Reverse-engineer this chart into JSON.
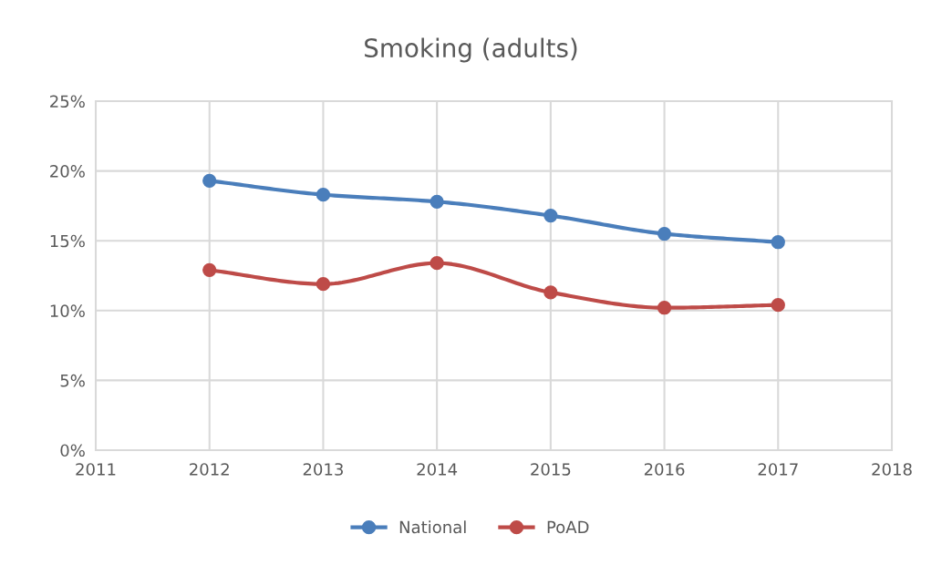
{
  "chart_data": {
    "type": "line",
    "title": "Smoking (adults)",
    "x": [
      2012,
      2013,
      2014,
      2015,
      2016,
      2017
    ],
    "series": [
      {
        "name": "National",
        "color": "#4a7ebb",
        "values": [
          19.3,
          18.3,
          17.8,
          16.8,
          15.5,
          14.9
        ]
      },
      {
        "name": "PoAD",
        "color": "#be4b48",
        "values": [
          12.9,
          11.9,
          13.4,
          11.3,
          10.2,
          10.4
        ]
      }
    ],
    "xlim": [
      2011,
      2018
    ],
    "xticks": [
      2011,
      2012,
      2013,
      2014,
      2015,
      2016,
      2017,
      2018
    ],
    "ylim": [
      0,
      25
    ],
    "yticks": [
      {
        "value": 0,
        "label": "0%"
      },
      {
        "value": 5,
        "label": "5%"
      },
      {
        "value": 10,
        "label": "10%"
      },
      {
        "value": 15,
        "label": "15%"
      },
      {
        "value": 20,
        "label": "20%"
      },
      {
        "value": 25,
        "label": "25%"
      }
    ],
    "grid": true,
    "legend": "bottom",
    "marker": "circle",
    "line_style": "solid"
  }
}
